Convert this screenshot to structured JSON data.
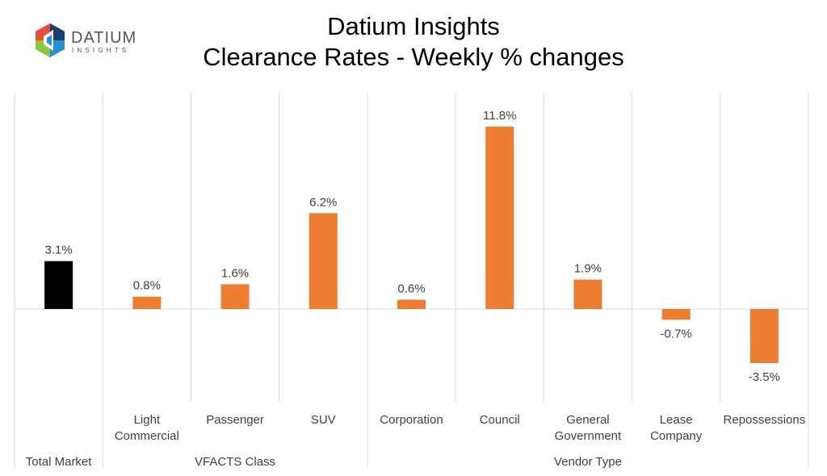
{
  "logo": {
    "text_main": "DATIUM",
    "text_sub": "INSIGHTS"
  },
  "chart_data": {
    "type": "bar",
    "title": "Datium Insights",
    "subtitle": "Clearance Rates - Weekly % changes",
    "categories": [
      "Total Market",
      "Light Commercial",
      "Passenger",
      "SUV",
      "Corporation",
      "Council",
      "General Government",
      "Lease Company",
      "Repossessions"
    ],
    "category_lines": [
      [
        "Total Market"
      ],
      [
        "Light",
        "Commercial"
      ],
      [
        "Passenger"
      ],
      [
        "SUV"
      ],
      [
        "Corporation"
      ],
      [
        "Council"
      ],
      [
        "General",
        "Government"
      ],
      [
        "Lease",
        "Company"
      ],
      [
        "Repossessions"
      ]
    ],
    "groups": [
      {
        "label": "Total Market",
        "span": 1
      },
      {
        "label": "VFACTS Class",
        "span": 3
      },
      {
        "label": "Vendor Type",
        "span": 5
      }
    ],
    "values": [
      3.1,
      0.8,
      1.6,
      6.2,
      0.6,
      11.8,
      1.9,
      -0.7,
      -3.5
    ],
    "data_labels": [
      "3.1%",
      "0.8%",
      "1.6%",
      "6.2%",
      "0.6%",
      "11.8%",
      "1.9%",
      "-0.7%",
      "-3.5%"
    ],
    "colors": [
      "#000000",
      "#ED7D31",
      "#ED7D31",
      "#ED7D31",
      "#ED7D31",
      "#ED7D31",
      "#ED7D31",
      "#ED7D31",
      "#ED7D31"
    ],
    "grid": "vertical category separators",
    "legend": "none"
  }
}
